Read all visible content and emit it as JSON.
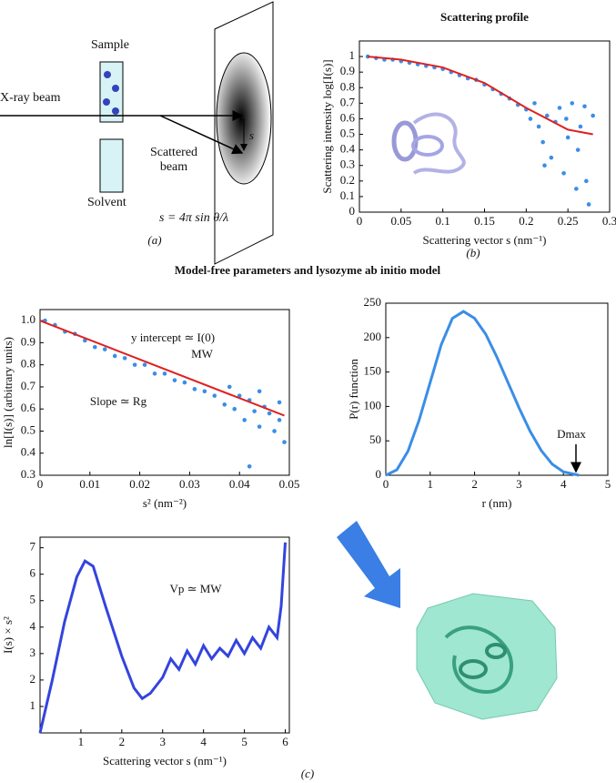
{
  "figure": {
    "title": "Model-free parameters and lysozyme ab initio model",
    "panel_a": "(a)",
    "panel_b": "(b)",
    "panel_c": "(c)"
  },
  "diagram": {
    "sample": "Sample",
    "xray": "X-ray beam",
    "scattered": "Scattered beam",
    "solvent": "Solvent",
    "formula": "s = 4π sin θ/λ",
    "vector": "s"
  },
  "chart_data": [
    {
      "type": "scatter",
      "title": "Scattering profile",
      "xlabel": "Scattering vector s (nm⁻¹)",
      "ylabel": "Scattering intensity log[I(s)]",
      "xlim": [
        0,
        0.3
      ],
      "xticks": [
        0,
        0.05,
        0.1,
        0.15,
        0.2,
        0.25,
        0.3
      ],
      "ylim": [
        0,
        1.1
      ],
      "yticks": [
        0,
        0.1,
        0.2,
        0.3,
        0.4,
        0.5,
        0.6,
        0.7,
        0.8,
        0.9,
        1
      ],
      "series": [
        {
          "mode": "markers",
          "color": "#3a8ee6",
          "x": [
            0.01,
            0.02,
            0.03,
            0.04,
            0.05,
            0.06,
            0.07,
            0.08,
            0.09,
            0.1,
            0.11,
            0.12,
            0.13,
            0.14,
            0.15,
            0.16,
            0.17,
            0.18,
            0.19,
            0.2,
            0.205,
            0.21,
            0.215,
            0.22,
            0.225,
            0.23,
            0.235,
            0.24,
            0.245,
            0.25,
            0.255,
            0.26,
            0.265,
            0.27,
            0.275,
            0.28,
            0.222,
            0.248,
            0.262,
            0.272
          ],
          "values": [
            1.0,
            0.99,
            0.98,
            0.98,
            0.97,
            0.96,
            0.95,
            0.94,
            0.93,
            0.92,
            0.9,
            0.88,
            0.86,
            0.85,
            0.82,
            0.79,
            0.76,
            0.73,
            0.69,
            0.66,
            0.6,
            0.7,
            0.55,
            0.45,
            0.62,
            0.35,
            0.58,
            0.67,
            0.25,
            0.48,
            0.7,
            0.15,
            0.55,
            0.68,
            0.05,
            0.62,
            0.3,
            0.6,
            0.4,
            0.2
          ]
        },
        {
          "mode": "line",
          "color": "#e02020",
          "x": [
            0.01,
            0.05,
            0.1,
            0.15,
            0.2,
            0.25,
            0.28
          ],
          "values": [
            1.0,
            0.98,
            0.93,
            0.83,
            0.67,
            0.53,
            0.5
          ]
        }
      ]
    },
    {
      "type": "scatter",
      "xlabel": "s² (nm⁻²)",
      "ylabel": "ln[I(s)] (arbitrary units)",
      "xlim": [
        0,
        0.05
      ],
      "xticks": [
        0,
        0.01,
        0.02,
        0.03,
        0.04,
        0.05
      ],
      "ylim": [
        0.3,
        1.05
      ],
      "yticks": [
        0.3,
        0.4,
        0.5,
        0.6,
        0.7,
        0.8,
        0.9,
        {
          "value": 1,
          "label": "1.0"
        }
      ],
      "annotations": [
        "y intercept ≃ I(0)",
        "MW",
        "Slope ≃ Rg"
      ],
      "series": [
        {
          "mode": "markers",
          "color": "#3a8ee6",
          "x": [
            0.001,
            0.003,
            0.005,
            0.007,
            0.009,
            0.011,
            0.013,
            0.015,
            0.017,
            0.019,
            0.021,
            0.023,
            0.025,
            0.027,
            0.029,
            0.031,
            0.033,
            0.035,
            0.037,
            0.038,
            0.039,
            0.04,
            0.041,
            0.042,
            0.043,
            0.044,
            0.045,
            0.046,
            0.047,
            0.048,
            0.049,
            0.042,
            0.044,
            0.048
          ],
          "values": [
            1.0,
            0.98,
            0.95,
            0.94,
            0.91,
            0.88,
            0.87,
            0.84,
            0.83,
            0.8,
            0.8,
            0.76,
            0.76,
            0.73,
            0.72,
            0.69,
            0.68,
            0.66,
            0.62,
            0.7,
            0.6,
            0.66,
            0.55,
            0.64,
            0.59,
            0.52,
            0.61,
            0.58,
            0.5,
            0.63,
            0.45,
            0.34,
            0.68,
            0.55
          ]
        },
        {
          "mode": "line",
          "color": "#e02020",
          "x": [
            0,
            0.049
          ],
          "values": [
            1.0,
            0.57
          ]
        }
      ]
    },
    {
      "type": "line",
      "xlabel": "r (nm)",
      "ylabel": "P(r) function",
      "xlim": [
        0,
        5
      ],
      "xticks": [
        0,
        1,
        2,
        3,
        4,
        5
      ],
      "ylim": [
        0,
        250
      ],
      "yticks": [
        0,
        50,
        100,
        150,
        200,
        250
      ],
      "annotations": [
        "Dmax"
      ],
      "series": [
        {
          "color": "#3a8ee6",
          "x": [
            0,
            0.25,
            0.5,
            0.75,
            1,
            1.25,
            1.5,
            1.75,
            2,
            2.25,
            2.5,
            2.75,
            3,
            3.25,
            3.5,
            3.75,
            4,
            4.35
          ],
          "values": [
            0,
            8,
            35,
            80,
            135,
            190,
            228,
            238,
            228,
            205,
            172,
            135,
            98,
            64,
            36,
            16,
            5,
            0
          ]
        }
      ]
    },
    {
      "type": "line",
      "xlabel": "Scattering vector s (nm⁻¹)",
      "ylabel": "I(s) × s²",
      "xlim": [
        0,
        6.1
      ],
      "xticks": [
        1,
        2,
        3,
        4,
        5,
        6
      ],
      "ylim": [
        0,
        7.4
      ],
      "yticks": [
        1,
        2,
        3,
        4,
        5,
        6,
        7
      ],
      "annotations": [
        "Vp ≃ MW"
      ],
      "series": [
        {
          "color": "#3344dd",
          "x": [
            0,
            0.3,
            0.6,
            0.9,
            1.1,
            1.3,
            1.6,
            2,
            2.3,
            2.5,
            2.7,
            3,
            3.2,
            3.4,
            3.6,
            3.8,
            4,
            4.2,
            4.4,
            4.6,
            4.8,
            5,
            5.2,
            5.4,
            5.6,
            5.8,
            5.9,
            6
          ],
          "values": [
            0,
            2.0,
            4.2,
            5.9,
            6.5,
            6.3,
            4.8,
            2.9,
            1.7,
            1.3,
            1.5,
            2.1,
            2.8,
            2.4,
            3.1,
            2.6,
            3.3,
            2.8,
            3.2,
            2.9,
            3.5,
            3.0,
            3.6,
            3.2,
            4.0,
            3.6,
            4.8,
            7.2
          ]
        }
      ]
    }
  ]
}
